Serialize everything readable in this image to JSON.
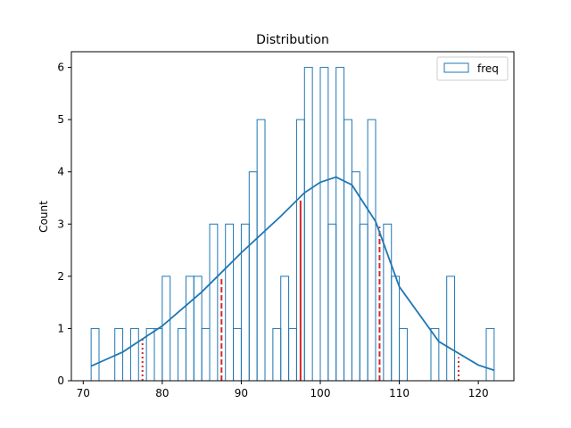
{
  "chart_data": {
    "type": "bar",
    "title": "Distribution",
    "xlabel": "",
    "ylabel": "Count",
    "xlim": [
      68.5,
      124.5
    ],
    "ylim": [
      0,
      6.3
    ],
    "xticks": [
      70,
      80,
      90,
      100,
      110,
      120
    ],
    "yticks": [
      0,
      1,
      2,
      3,
      4,
      5,
      6
    ],
    "legend": {
      "label": "freq",
      "placement": "top-right"
    },
    "series": [
      {
        "name": "freq",
        "kind": "histogram",
        "bin_start": 71.0,
        "bin_width": 1.0,
        "values": [
          1,
          0,
          0,
          1,
          0,
          1,
          0,
          1,
          1,
          2,
          0,
          1,
          2,
          2,
          1,
          3,
          0,
          3,
          1,
          3,
          4,
          5,
          0,
          1,
          2,
          1,
          5,
          6,
          0,
          6,
          3,
          6,
          5,
          4,
          3,
          5,
          0,
          3,
          2,
          1,
          0,
          0,
          0,
          1,
          0,
          2,
          0,
          0,
          0,
          0,
          1
        ]
      },
      {
        "name": "kde",
        "kind": "line",
        "color": "#1f77b4",
        "x": [
          71.0,
          75,
          80,
          85,
          90,
          95,
          98,
          100,
          102,
          104,
          107,
          110,
          115,
          120,
          122
        ],
        "y": [
          0.28,
          0.55,
          1.05,
          1.7,
          2.45,
          3.15,
          3.6,
          3.8,
          3.9,
          3.75,
          3.05,
          1.8,
          0.75,
          0.3,
          0.2
        ]
      }
    ],
    "reference_lines": [
      {
        "name": "median",
        "x": 97.5,
        "y_top": 3.45,
        "style": "solid",
        "color": "#d62728"
      },
      {
        "name": "q1",
        "x": 87.5,
        "y_top": 2.0,
        "style": "dashed",
        "color": "#d62728"
      },
      {
        "name": "q3",
        "x": 107.5,
        "y_top": 2.95,
        "style": "dashed",
        "color": "#d62728"
      },
      {
        "name": "p5",
        "x": 77.5,
        "y_top": 0.8,
        "style": "dotted",
        "color": "#d62728"
      },
      {
        "name": "p95",
        "x": 117.5,
        "y_top": 0.45,
        "style": "dotted",
        "color": "#d62728"
      }
    ],
    "colors": {
      "bar_edge": "#1f77b4",
      "kde": "#1f77b4",
      "ref": "#d62728"
    }
  }
}
